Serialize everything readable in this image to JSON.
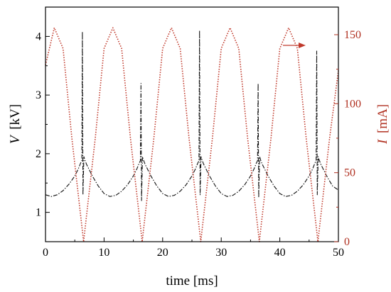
{
  "chart_data": {
    "type": "line",
    "xlabel": "time [ms]",
    "ylabel_left": {
      "symbol": "V",
      "unit": "[kV]"
    },
    "ylabel_right": {
      "symbol": "I",
      "unit": "[mA]"
    },
    "xlim": [
      0,
      50
    ],
    "ylim_left": [
      0.5,
      4.5
    ],
    "ylim_right": [
      0,
      170
    ],
    "x_ticks": [
      "0",
      "10",
      "20",
      "30",
      "40",
      "50"
    ],
    "y_left_ticks": [
      "1",
      "2",
      "3",
      "4"
    ],
    "y_right_ticks": [
      "0",
      "50",
      "100",
      "150"
    ],
    "colors": {
      "voltage": "#111111",
      "current": "#c0392b",
      "axis_right": "#b03020"
    },
    "annotation": {
      "type": "arrow",
      "direction": "right",
      "points_to": "current-axis"
    },
    "series": [
      {
        "axis": "left",
        "style": "dash-dot",
        "color": "#111111",
        "x": [
          0,
          1,
          2,
          3,
          4,
          5,
          5.6,
          6.0,
          6.2,
          6.3,
          6.4,
          6.55,
          6.7,
          7,
          8,
          9,
          10,
          11,
          12,
          13,
          14,
          15,
          15.6,
          16.0,
          16.2,
          16.3,
          16.4,
          16.55,
          16.7,
          17,
          18,
          19,
          20,
          21,
          22,
          23,
          24,
          25,
          25.6,
          26.0,
          26.2,
          26.3,
          26.4,
          26.55,
          26.7,
          27,
          28,
          29,
          30,
          31,
          32,
          33,
          34,
          35,
          35.6,
          36.0,
          36.2,
          36.3,
          36.4,
          36.55,
          36.7,
          37,
          38,
          39,
          40,
          41,
          42,
          43,
          44,
          45,
          45.6,
          46.0,
          46.2,
          46.3,
          46.4,
          46.55,
          46.7,
          47,
          48,
          49,
          50
        ],
        "y": [
          1.3,
          1.27,
          1.3,
          1.37,
          1.48,
          1.62,
          1.74,
          1.84,
          1.88,
          4.08,
          1.3,
          1.95,
          1.9,
          1.82,
          1.62,
          1.45,
          1.32,
          1.27,
          1.29,
          1.36,
          1.47,
          1.62,
          1.74,
          1.84,
          1.88,
          3.2,
          1.2,
          1.95,
          1.9,
          1.82,
          1.62,
          1.45,
          1.32,
          1.27,
          1.29,
          1.36,
          1.47,
          1.62,
          1.74,
          1.84,
          1.88,
          4.1,
          1.3,
          1.95,
          1.9,
          1.82,
          1.62,
          1.45,
          1.32,
          1.27,
          1.29,
          1.36,
          1.47,
          1.62,
          1.74,
          1.84,
          1.88,
          3.2,
          1.25,
          1.95,
          1.9,
          1.82,
          1.62,
          1.45,
          1.32,
          1.27,
          1.29,
          1.36,
          1.47,
          1.62,
          1.74,
          1.84,
          1.88,
          3.75,
          1.3,
          1.95,
          1.9,
          1.82,
          1.62,
          1.45,
          1.38
        ]
      },
      {
        "axis": "right",
        "style": "dotted",
        "color": "#c0392b",
        "x": [
          0,
          1.5,
          3,
          4.5,
          6.5,
          8.5,
          10,
          11.5,
          13,
          14.5,
          16.5,
          18.5,
          20,
          21.5,
          23,
          24.5,
          26.5,
          28.5,
          30,
          31.5,
          33,
          34.5,
          36.5,
          38.5,
          40,
          41.5,
          43,
          44.5,
          46.5,
          48.5,
          50
        ],
        "y": [
          128,
          155,
          140,
          75,
          0,
          75,
          140,
          155,
          140,
          75,
          0,
          75,
          140,
          155,
          140,
          75,
          0,
          75,
          140,
          155,
          140,
          75,
          0,
          75,
          140,
          155,
          140,
          75,
          0,
          75,
          124
        ]
      }
    ]
  }
}
